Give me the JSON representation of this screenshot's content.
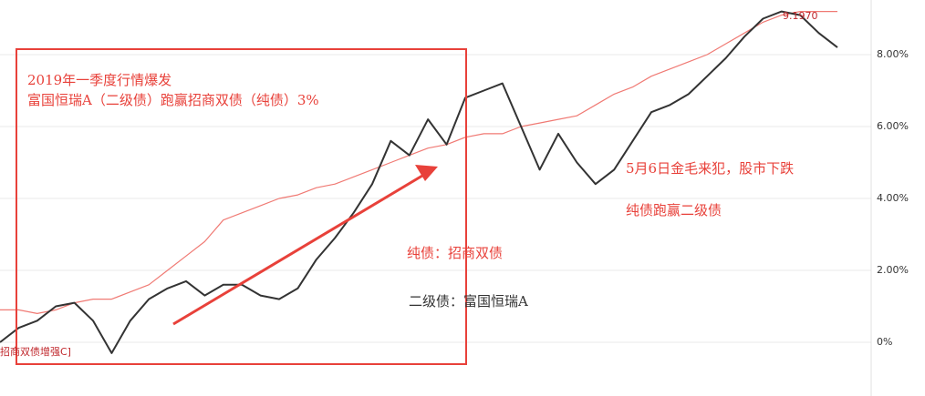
{
  "chart_data": {
    "type": "line",
    "x": [
      0,
      1,
      2,
      3,
      4,
      5,
      6,
      7,
      8,
      9,
      10,
      11,
      12,
      13,
      14,
      15,
      16,
      17,
      18,
      19,
      20,
      21,
      22,
      23,
      24,
      25,
      26,
      27,
      28,
      29,
      30,
      31,
      32,
      33,
      34,
      35,
      36,
      37,
      38,
      39,
      40,
      41,
      42,
      43,
      44,
      45
    ],
    "series": [
      {
        "name": "招商双债增强C",
        "color": "#f07a74",
        "values": [
          0.9,
          0.9,
          0.8,
          0.9,
          1.1,
          1.2,
          1.2,
          1.4,
          1.6,
          2.0,
          2.4,
          2.8,
          3.4,
          3.6,
          3.8,
          4.0,
          4.1,
          4.3,
          4.4,
          4.6,
          4.8,
          5.0,
          5.2,
          5.4,
          5.5,
          5.7,
          5.8,
          5.8,
          6.0,
          6.1,
          6.2,
          6.3,
          6.6,
          6.9,
          7.1,
          7.4,
          7.6,
          7.8,
          8.0,
          8.3,
          8.6,
          8.9,
          9.1,
          9.2,
          9.2,
          9.2
        ]
      },
      {
        "name": "富国恒瑞A",
        "color": "#333333",
        "values": [
          0.0,
          0.4,
          0.6,
          1.0,
          1.1,
          0.6,
          -0.3,
          0.6,
          1.2,
          1.5,
          1.7,
          1.3,
          1.6,
          1.6,
          1.3,
          1.2,
          1.5,
          2.3,
          2.9,
          3.6,
          4.4,
          5.6,
          5.2,
          6.2,
          5.5,
          6.8,
          7.0,
          7.2,
          6.0,
          4.8,
          5.8,
          5.0,
          4.4,
          4.8,
          5.6,
          6.4,
          6.6,
          6.9,
          7.4,
          7.9,
          8.5,
          9.0,
          9.2,
          9.1,
          8.6,
          8.2
        ]
      }
    ],
    "yticks": [
      "8.00%",
      "6.00%",
      "4.00%",
      "2.00%",
      "0%"
    ],
    "ylim": [
      -1.4,
      9.4
    ],
    "xlim": [
      0,
      45
    ],
    "grid": true,
    "end_label": "9.1970",
    "series_tag": "招商双债增强C]",
    "annotations": {
      "box_line1": "2019年一季度行情爆发",
      "box_line2": "富国恒瑞A（二级债）跑赢招商双债（纯债）3%",
      "right_line1": "5月6日金毛来犯，股市下跌",
      "right_line2": "纯债跑赢二级债",
      "legend_pure": "纯债：招商双债",
      "legend_second": "二级债：富国恒瑞A"
    }
  }
}
